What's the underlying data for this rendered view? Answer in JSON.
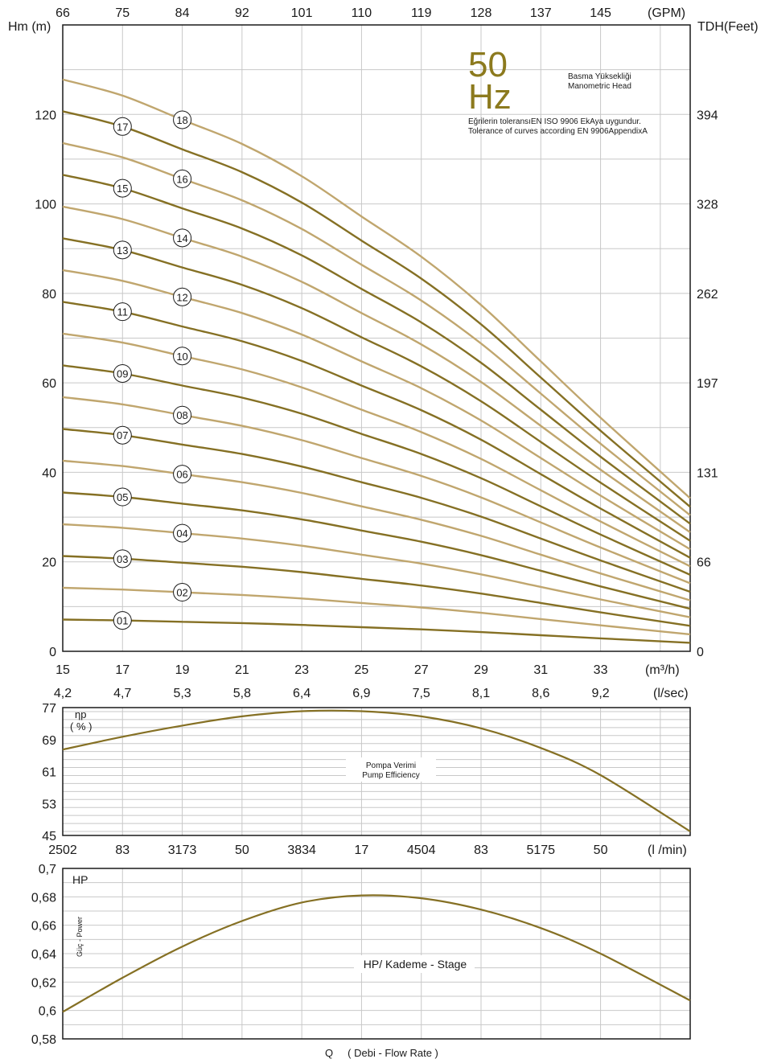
{
  "colors": {
    "dark": "#857024",
    "light": "#c0a66e",
    "grid": "#c8c8c8",
    "frame": "#1a1a1a",
    "hz": "#8c7a1e"
  },
  "head_chart": {
    "hz_value": "50",
    "hz_unit": "Hz",
    "title_tr": "Basma Yüksekliği",
    "title_en": "Manometric Head",
    "tolerance_tr": "Eğrilerin toleransıEN ISO 9906 EkAya uygundur.",
    "tolerance_en": "Tolerance of curves according EN 9906AppendixA",
    "left_unit": "Hm (m)",
    "right_unit": "TDH(Feet)",
    "top_unit": "(GPM)",
    "bottom_unit": "(m³/h)",
    "lsec_unit": "(l/sec)",
    "gpm_ticks": [
      "66",
      "75",
      "84",
      "92",
      "101",
      "110",
      "119",
      "128",
      "137",
      "145"
    ],
    "m3h_ticks": [
      "15",
      "17",
      "19",
      "21",
      "23",
      "25",
      "27",
      "29",
      "31",
      "33"
    ],
    "lsec_ticks": [
      "4,2",
      "4,7",
      "5,3",
      "5,8",
      "6,4",
      "6,9",
      "7,5",
      "8,1",
      "8,6",
      "9,2"
    ],
    "left_ticks": [
      "0",
      "20",
      "40",
      "60",
      "80",
      "100",
      "120"
    ],
    "right_ticks": [
      "0",
      "66",
      "131",
      "197",
      "262",
      "328",
      "394"
    ]
  },
  "efficiency_chart": {
    "label_symbol": "ηp",
    "label_unit": "( % )",
    "title_tr": "Pompa Verimi",
    "title_en": "Pump Efficiency",
    "y_ticks": [
      "45",
      "53",
      "61",
      "69",
      "77"
    ],
    "lmin_unit": "(l /min)",
    "lmin_ticks": [
      "2502",
      "83",
      "3173",
      "50",
      "3834",
      "17",
      "4504",
      "83",
      "5175",
      "50"
    ]
  },
  "power_chart": {
    "label": "HP",
    "side_label": "Güç - Power",
    "title": "HP/ Kademe - Stage",
    "y_ticks": [
      "0,58",
      "0,6",
      "0,62",
      "0,64",
      "0,66",
      "0,68",
      "0,7"
    ],
    "bottom_label": "Q     ( Debi - Flow Rate )"
  },
  "chart_data": [
    {
      "type": "line",
      "title": "Basma Yüksekliği / Manometric Head",
      "xlabel": "m³/h",
      "ylabel": "Hm (m)",
      "xlim": [
        15,
        36
      ],
      "ylim": [
        0,
        140
      ],
      "grid": true,
      "x": [
        15,
        17,
        19,
        21,
        23,
        25,
        27,
        29,
        31,
        33,
        36
      ],
      "single_stage_head": [
        7.1,
        6.9,
        6.6,
        6.3,
        5.9,
        5.4,
        4.9,
        4.3,
        3.6,
        2.9,
        1.9
      ],
      "series": [
        {
          "name": "01",
          "values": [
            7.1,
            6.9,
            6.6,
            6.3,
            5.9,
            5.4,
            4.9,
            4.3,
            3.6,
            2.9,
            1.9
          ]
        },
        {
          "name": "02",
          "values": [
            14.2,
            13.8,
            13.2,
            12.6,
            11.8,
            10.8,
            9.8,
            8.6,
            7.2,
            5.8,
            3.8
          ]
        },
        {
          "name": "03",
          "values": [
            21.3,
            20.7,
            19.8,
            18.9,
            17.7,
            16.2,
            14.7,
            12.9,
            10.8,
            8.7,
            5.7
          ]
        },
        {
          "name": "04",
          "values": [
            28.4,
            27.6,
            26.4,
            25.2,
            23.6,
            21.6,
            19.6,
            17.2,
            14.4,
            11.6,
            7.6
          ]
        },
        {
          "name": "05",
          "values": [
            35.5,
            34.5,
            33.0,
            31.5,
            29.5,
            27.0,
            24.5,
            21.5,
            18.0,
            14.5,
            9.5
          ]
        },
        {
          "name": "06",
          "values": [
            42.6,
            41.4,
            39.6,
            37.8,
            35.4,
            32.4,
            29.4,
            25.8,
            21.6,
            17.4,
            11.4
          ]
        },
        {
          "name": "07",
          "values": [
            49.7,
            48.3,
            46.2,
            44.1,
            41.3,
            37.8,
            34.3,
            30.1,
            25.2,
            20.3,
            13.3
          ]
        },
        {
          "name": "08",
          "values": [
            56.8,
            55.2,
            52.8,
            50.4,
            47.2,
            43.2,
            39.2,
            34.4,
            28.8,
            23.2,
            15.2
          ]
        },
        {
          "name": "09",
          "values": [
            63.9,
            62.1,
            59.4,
            56.7,
            53.1,
            48.6,
            44.1,
            38.7,
            32.4,
            26.1,
            17.1
          ]
        },
        {
          "name": "10",
          "values": [
            71.0,
            69.0,
            66.0,
            63.0,
            59.0,
            54.0,
            49.0,
            43.0,
            36.0,
            29.0,
            19.0
          ]
        },
        {
          "name": "11",
          "values": [
            78.1,
            75.9,
            72.6,
            69.3,
            64.9,
            59.4,
            53.9,
            47.3,
            39.6,
            31.9,
            20.9
          ]
        },
        {
          "name": "12",
          "values": [
            85.2,
            82.8,
            79.2,
            75.6,
            70.8,
            64.8,
            58.8,
            51.6,
            43.2,
            34.8,
            22.8
          ]
        },
        {
          "name": "13",
          "values": [
            92.3,
            89.7,
            85.8,
            81.9,
            76.7,
            70.2,
            63.7,
            55.9,
            46.8,
            37.7,
            24.7
          ]
        },
        {
          "name": "14",
          "values": [
            99.4,
            96.6,
            92.4,
            88.2,
            82.6,
            75.6,
            68.6,
            60.2,
            50.4,
            40.6,
            26.6
          ]
        },
        {
          "name": "15",
          "values": [
            106.5,
            103.5,
            99.0,
            94.5,
            88.5,
            81.0,
            73.5,
            64.5,
            54.0,
            43.5,
            28.5
          ]
        },
        {
          "name": "16",
          "values": [
            113.6,
            110.4,
            105.6,
            100.8,
            94.4,
            86.4,
            78.4,
            68.8,
            57.6,
            46.4,
            30.4
          ]
        },
        {
          "name": "17",
          "values": [
            120.7,
            117.3,
            112.2,
            107.1,
            100.3,
            91.8,
            83.3,
            73.1,
            61.2,
            49.3,
            32.3
          ]
        },
        {
          "name": "18",
          "values": [
            127.8,
            124.2,
            118.8,
            113.4,
            106.2,
            97.2,
            88.2,
            77.4,
            64.8,
            52.2,
            34.2
          ]
        }
      ]
    },
    {
      "type": "line",
      "title": "Pompa Verimi / Pump Efficiency",
      "xlabel": "m³/h",
      "ylabel": "ηp ( % )",
      "xlim": [
        15,
        36
      ],
      "ylim": [
        45,
        77
      ],
      "x": [
        15,
        17,
        19,
        21,
        23,
        25,
        27,
        29,
        31,
        33,
        36
      ],
      "values": [
        66.5,
        69.7,
        72.5,
        74.8,
        76.1,
        76.1,
        74.8,
        71.8,
        66.9,
        60.1,
        46.0
      ]
    },
    {
      "type": "line",
      "title": "HP/ Kademe - Stage",
      "xlabel": "Q ( Debi - Flow Rate )",
      "ylabel": "HP",
      "xlim": [
        15,
        36
      ],
      "ylim": [
        0.58,
        0.7
      ],
      "x": [
        15,
        17,
        19,
        21,
        23,
        25,
        27,
        29,
        31,
        33,
        36
      ],
      "values": [
        0.599,
        0.623,
        0.645,
        0.663,
        0.676,
        0.681,
        0.679,
        0.671,
        0.658,
        0.64,
        0.607
      ]
    }
  ]
}
